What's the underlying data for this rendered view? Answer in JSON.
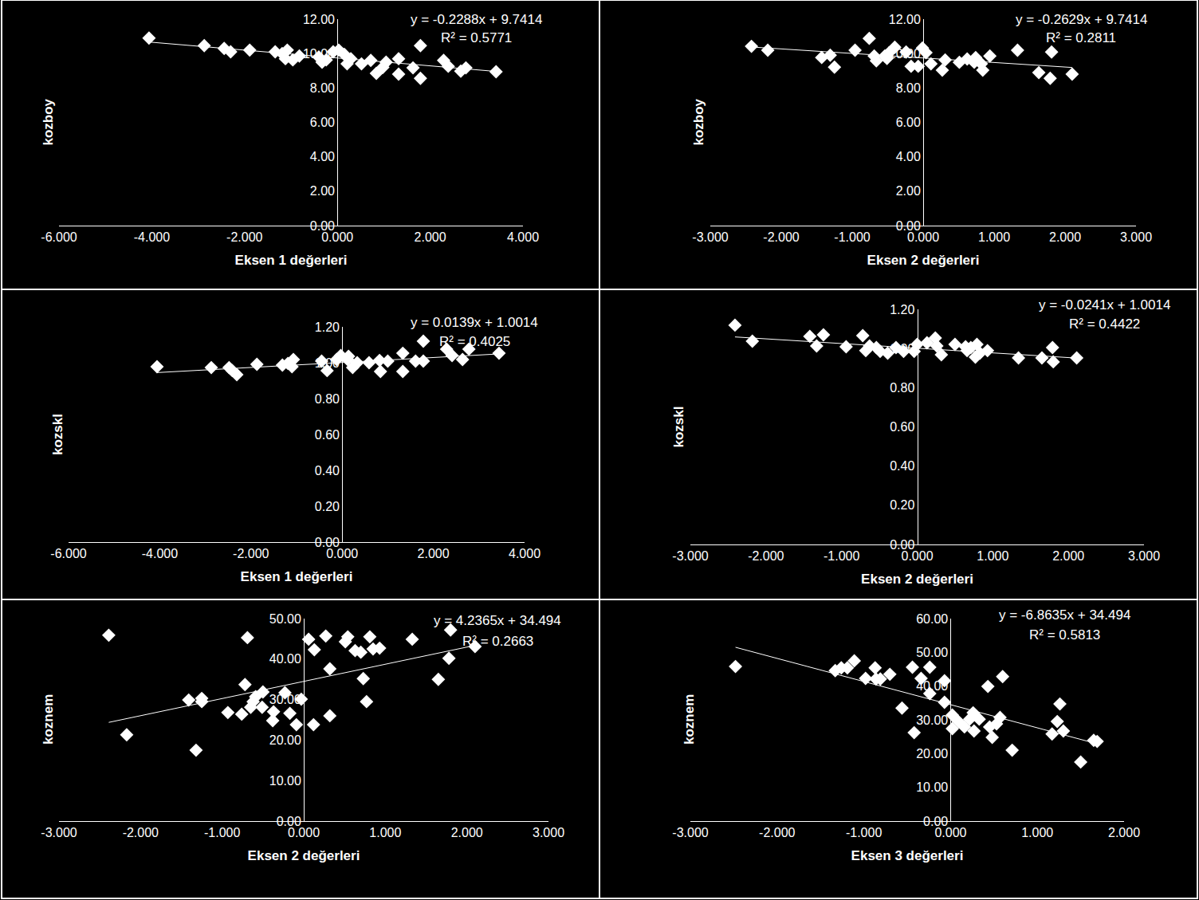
{
  "chart_data": [
    {
      "type": "scatter",
      "color": "#ffffff",
      "marker": "diamond",
      "x_label": "Eksen 1 değerleri",
      "y_label": "kozboy",
      "annotations": [
        "y = -0.2288x + 9.7414",
        "R² = 0.5771"
      ],
      "xlim": [
        -6,
        4
      ],
      "ylim": [
        0,
        12
      ],
      "xticks": [
        {
          "value": -6,
          "label": "-6.000"
        },
        {
          "value": -4,
          "label": "-4.000"
        },
        {
          "value": -2,
          "label": "-2.000"
        },
        {
          "value": 0,
          "label": "0.000"
        },
        {
          "value": 2,
          "label": "2.000"
        },
        {
          "value": 4,
          "label": "4.000"
        }
      ],
      "yticks": [
        {
          "value": 0,
          "label": "0.00"
        },
        {
          "value": 2,
          "label": "2.00"
        },
        {
          "value": 4,
          "label": "4.00"
        },
        {
          "value": 6,
          "label": "6.00"
        },
        {
          "value": 8,
          "label": "8.00"
        },
        {
          "value": 10,
          "label": "10.00"
        },
        {
          "value": 12,
          "label": "12.00"
        }
      ],
      "x": [
        -4.06,
        -2.87,
        -2.44,
        -2.3,
        -1.89,
        -1.34,
        -1.19,
        -1.08,
        -1.12,
        -0.82,
        -0.4,
        -0.33,
        -0.09,
        0.03,
        0.15,
        0.29,
        0.21,
        0.52,
        0.72,
        0.84,
        0.98,
        1.05,
        1.32,
        1.32,
        1.63,
        1.79,
        1.79,
        2.29,
        2.39,
        2.66,
        2.77,
        3.42,
        -0.24,
        -0.96
      ],
      "y": [
        10.9,
        10.46,
        10.3,
        10.1,
        10.2,
        10.1,
        10.0,
        10.2,
        9.7,
        9.86,
        9.8,
        9.5,
        10.1,
        10.2,
        9.95,
        9.7,
        9.4,
        9.4,
        9.6,
        8.85,
        9.2,
        9.5,
        9.7,
        8.8,
        9.17,
        10.46,
        8.56,
        9.6,
        9.26,
        8.98,
        9.17,
        8.94,
        9.63,
        9.63
      ],
      "trendline": {
        "x": [
          -4.06,
          3.42
        ],
        "y": [
          10.67,
          8.96
        ]
      }
    },
    {
      "type": "scatter",
      "color": "#ffffff",
      "marker": "diamond",
      "x_label": "Eksen 2 değerleri",
      "y_label": "kozboy",
      "annotations": [
        "y = -0.2629x + 9.7414",
        "R² = 0.2811"
      ],
      "xlim": [
        -3,
        3
      ],
      "ylim": [
        0,
        12
      ],
      "xticks": [
        {
          "value": -3,
          "label": "-3.000"
        },
        {
          "value": -2,
          "label": "-2.000"
        },
        {
          "value": -1,
          "label": "-1.000"
        },
        {
          "value": 0,
          "label": "0.000"
        },
        {
          "value": 1,
          "label": "1.000"
        },
        {
          "value": 2,
          "label": "2.000"
        },
        {
          "value": 3,
          "label": "3.000"
        }
      ],
      "yticks": [
        {
          "value": 0,
          "label": "0.00"
        },
        {
          "value": 2,
          "label": "2.00"
        },
        {
          "value": 4,
          "label": "4.00"
        },
        {
          "value": 6,
          "label": "6.00"
        },
        {
          "value": 8,
          "label": "8.00"
        },
        {
          "value": 10,
          "label": "10.00"
        },
        {
          "value": 12,
          "label": "12.00"
        }
      ],
      "x": [
        -2.42,
        -2.19,
        -1.43,
        -1.31,
        -1.25,
        -0.96,
        -0.76,
        -0.69,
        -0.66,
        -0.54,
        -0.48,
        -0.4,
        -0.24,
        -0.17,
        -0.07,
        -0.01,
        0.04,
        0.11,
        0.27,
        0.31,
        0.51,
        0.62,
        0.72,
        0.74,
        0.82,
        0.84,
        0.94,
        1.33,
        1.63,
        1.79,
        1.81,
        2.1,
        -0.51
      ],
      "y": [
        10.42,
        10.19,
        9.77,
        9.9,
        9.21,
        10.19,
        10.88,
        9.86,
        9.58,
        9.86,
        10.05,
        10.37,
        10.09,
        9.26,
        9.26,
        10.32,
        10.05,
        9.4,
        9.03,
        9.63,
        9.49,
        9.68,
        9.49,
        9.77,
        9.4,
        9.03,
        9.86,
        10.19,
        8.89,
        8.56,
        10.09,
        8.8,
        9.72
      ],
      "trendline": {
        "x": [
          -2.42,
          2.1
        ],
        "y": [
          10.38,
          9.19
        ]
      }
    },
    {
      "type": "scatter",
      "color": "#ffffff",
      "marker": "diamond",
      "x_label": "Eksen 1 değerleri",
      "y_label": "kozskl",
      "annotations": [
        "y = 0.0139x + 1.0014",
        "R² = 0.4025"
      ],
      "xlim": [
        -6,
        4
      ],
      "ylim": [
        0,
        1.2
      ],
      "xticks": [
        {
          "value": -6,
          "label": "-6.000"
        },
        {
          "value": -4,
          "label": "-4.000"
        },
        {
          "value": -2,
          "label": "-2.000"
        },
        {
          "value": 0,
          "label": "0.000"
        },
        {
          "value": 2,
          "label": "2.000"
        },
        {
          "value": 4,
          "label": "4.000"
        }
      ],
      "yticks": [
        {
          "value": 0,
          "label": "0.00"
        },
        {
          "value": 0.2,
          "label": "0.20"
        },
        {
          "value": 0.4,
          "label": "0.40"
        },
        {
          "value": 0.6,
          "label": "0.60"
        },
        {
          "value": 0.8,
          "label": "0.80"
        },
        {
          "value": 1.0,
          "label": "1.00"
        },
        {
          "value": 1.2,
          "label": "1.20"
        }
      ],
      "x": [
        -4.06,
        -2.87,
        -2.48,
        -2.41,
        -2.31,
        -1.87,
        -1.31,
        -1.19,
        -1.07,
        -1.1,
        -0.45,
        -0.33,
        -0.12,
        -0.03,
        0.14,
        0.23,
        0.33,
        0.59,
        0.82,
        0.84,
        1.0,
        1.33,
        1.33,
        1.61,
        1.78,
        1.78,
        2.29,
        2.41,
        2.64,
        2.78,
        3.44,
        0.12
      ],
      "y": [
        0.978,
        0.973,
        0.973,
        0.956,
        0.933,
        0.991,
        0.987,
        0.996,
        1.018,
        0.978,
        1.009,
        0.956,
        1.018,
        1.04,
        1.036,
        0.973,
        1.0,
        1.0,
        1.013,
        0.951,
        1.009,
        1.053,
        0.951,
        1.009,
        1.009,
        1.12,
        1.076,
        1.04,
        1.018,
        1.076,
        1.053,
        1.018
      ],
      "trendline": {
        "x": [
          -4.06,
          3.44
        ],
        "y": [
          0.945,
          1.049
        ]
      }
    },
    {
      "type": "scatter",
      "color": "#ffffff",
      "marker": "diamond",
      "x_label": "Eksen 2 değerleri",
      "y_label": "kozskl",
      "annotations": [
        "y = -0.0241x + 1.0014",
        "R² = 0.4422"
      ],
      "xlim": [
        -3,
        3
      ],
      "ylim": [
        0,
        1.2
      ],
      "xticks": [
        {
          "value": -3,
          "label": "-3.000"
        },
        {
          "value": -2,
          "label": "-2.000"
        },
        {
          "value": -1,
          "label": "-1.000"
        },
        {
          "value": 0,
          "label": "0.000"
        },
        {
          "value": 1,
          "label": "1.000"
        },
        {
          "value": 2,
          "label": "2.000"
        },
        {
          "value": 3,
          "label": "3.000"
        }
      ],
      "yticks": [
        {
          "value": 0,
          "label": "0.00"
        },
        {
          "value": 0.2,
          "label": "0.20"
        },
        {
          "value": 0.4,
          "label": "0.40"
        },
        {
          "value": 0.6,
          "label": "0.60"
        },
        {
          "value": 0.8,
          "label": "0.80"
        },
        {
          "value": 1.0,
          "label": "1.00"
        },
        {
          "value": 1.2,
          "label": "1.20"
        }
      ],
      "x": [
        -2.41,
        -2.18,
        -1.42,
        -1.33,
        -1.24,
        -0.94,
        -0.72,
        -0.68,
        -0.63,
        -0.54,
        -0.49,
        -0.39,
        -0.28,
        -0.18,
        -0.04,
        0.0,
        0.13,
        0.24,
        0.26,
        0.32,
        0.5,
        0.64,
        0.71,
        0.77,
        0.79,
        0.83,
        0.93,
        1.34,
        1.65,
        1.79,
        1.8,
        2.11,
        0.66
      ],
      "y": [
        1.119,
        1.037,
        1.062,
        1.013,
        1.07,
        1.009,
        1.066,
        0.989,
        1.013,
        1.005,
        0.985,
        0.976,
        1.005,
        0.985,
        0.985,
        1.021,
        1.029,
        1.054,
        1.013,
        0.968,
        1.021,
        1.009,
        1.005,
        0.956,
        1.021,
        0.976,
        0.989,
        0.952,
        0.952,
        1.005,
        0.932,
        0.952,
        0.989
      ],
      "trendline": {
        "x": [
          -2.41,
          2.11
        ],
        "y": [
          1.059,
          0.951
        ]
      }
    },
    {
      "type": "scatter",
      "color": "#ffffff",
      "marker": "diamond",
      "x_label": "Eksen 2 değerleri",
      "y_label": "koznem",
      "annotations": [
        "y = 4.2365x + 34.494",
        "R² = 0.2663"
      ],
      "xlim": [
        -3,
        3
      ],
      "ylim": [
        0,
        50
      ],
      "xticks": [
        {
          "value": -3,
          "label": "-3.000"
        },
        {
          "value": -2,
          "label": "-2.000"
        },
        {
          "value": -1,
          "label": "-1.000"
        },
        {
          "value": 0,
          "label": "0.000"
        },
        {
          "value": 1,
          "label": "1.000"
        },
        {
          "value": 2,
          "label": "2.000"
        },
        {
          "value": 3,
          "label": "3.000"
        }
      ],
      "yticks": [
        {
          "value": 0,
          "label": "0.00"
        },
        {
          "value": 10,
          "label": "10.00"
        },
        {
          "value": 20,
          "label": "20.00"
        },
        {
          "value": 30,
          "label": "30.00"
        },
        {
          "value": 40,
          "label": "40.00"
        },
        {
          "value": 50,
          "label": "50.00"
        }
      ],
      "x": [
        -2.39,
        -2.17,
        -1.41,
        -1.25,
        -1.25,
        -1.32,
        -0.93,
        -0.76,
        -0.72,
        -0.69,
        -0.65,
        -0.62,
        -0.59,
        -0.5,
        -0.51,
        -0.38,
        -0.37,
        -0.23,
        -0.17,
        -0.09,
        -0.03,
        0.06,
        0.13,
        0.12,
        0.27,
        0.32,
        0.32,
        0.51,
        0.54,
        0.63,
        0.7,
        0.73,
        0.77,
        0.81,
        0.85,
        0.93,
        1.33,
        1.65,
        1.78,
        1.8,
        2.1
      ],
      "y": [
        45.9,
        21.3,
        29.9,
        30.3,
        29.5,
        17.5,
        26.8,
        26.4,
        33.7,
        45.3,
        28.1,
        29.5,
        30.7,
        31.9,
        28.1,
        24.8,
        27.0,
        31.7,
        26.6,
        23.8,
        30.1,
        44.9,
        42.3,
        23.8,
        45.7,
        37.6,
        26.0,
        44.3,
        45.5,
        42.1,
        41.7,
        35.2,
        29.5,
        45.5,
        42.5,
        42.7,
        44.9,
        35.0,
        40.2,
        47.2,
        43.1
      ],
      "trendline": {
        "x": [
          -2.39,
          2.1
        ],
        "y": [
          24.37,
          43.39
        ]
      }
    },
    {
      "type": "scatter",
      "color": "#ffffff",
      "marker": "diamond",
      "x_label": "Eksen 3 değerleri",
      "y_label": "koznem",
      "annotations": [
        "y = -6.8635x + 34.494",
        "R² = 0.5813"
      ],
      "xlim": [
        -3,
        2
      ],
      "ylim": [
        0,
        60
      ],
      "xticks": [
        {
          "value": -3,
          "label": "-3.000"
        },
        {
          "value": -2,
          "label": "-2.000"
        },
        {
          "value": -1,
          "label": "-1.000"
        },
        {
          "value": 0,
          "label": "0.000"
        },
        {
          "value": 1,
          "label": "1.000"
        },
        {
          "value": 2,
          "label": "2.000"
        }
      ],
      "yticks": [
        {
          "value": 0,
          "label": "0.00"
        },
        {
          "value": 10,
          "label": "10.00"
        },
        {
          "value": 20,
          "label": "20.00"
        },
        {
          "value": 30,
          "label": "30.00"
        },
        {
          "value": 40,
          "label": "40.00"
        },
        {
          "value": 50,
          "label": "50.00"
        },
        {
          "value": 60,
          "label": "60.00"
        }
      ],
      "x": [
        -2.48,
        -1.33,
        -1.26,
        -1.19,
        -1.11,
        -0.98,
        -0.87,
        -0.86,
        -0.81,
        -0.7,
        -0.56,
        -0.44,
        -0.42,
        -0.34,
        -0.24,
        -0.24,
        -0.07,
        -0.07,
        0.02,
        0.02,
        0.09,
        0.16,
        0.22,
        0.26,
        0.27,
        0.33,
        0.45,
        0.43,
        0.48,
        0.53,
        0.57,
        0.6,
        0.71,
        1.17,
        1.23,
        1.26,
        1.3,
        1.5,
        1.65,
        1.69
      ],
      "y": [
        45.8,
        44.6,
        45.4,
        45.4,
        47.5,
        42.3,
        45.4,
        42.1,
        42.1,
        43.5,
        33.5,
        45.6,
        26.2,
        42.3,
        45.6,
        37.8,
        41.6,
        35.2,
        31.4,
        27.4,
        29.5,
        27.9,
        30.2,
        32.1,
        26.7,
        30.2,
        27.9,
        39.9,
        24.8,
        28.8,
        30.7,
        42.8,
        21.0,
        25.8,
        29.5,
        34.7,
        26.7,
        17.5,
        23.9,
        23.6
      ],
      "trendline": {
        "x": [
          -2.48,
          1.69
        ],
        "y": [
          51.5,
          22.9
        ]
      }
    }
  ]
}
